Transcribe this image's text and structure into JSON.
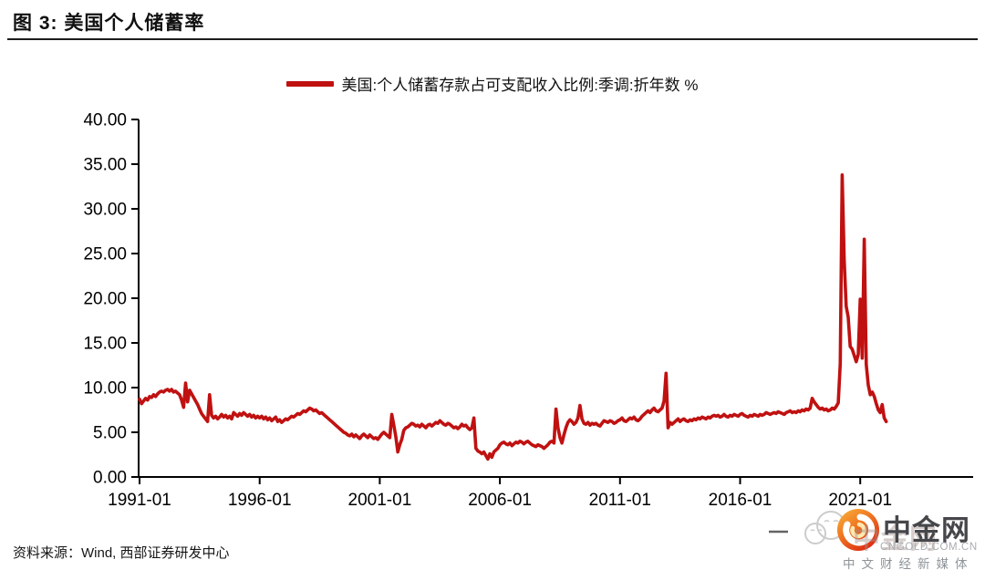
{
  "header": {
    "title": "图 3: 美国个人储蓄率"
  },
  "legend": {
    "label": "美国:个人储蓄存款占可支配收入比例:季调:折年数 %",
    "line_color": "#C01111"
  },
  "footer": {
    "source": "资料来源：Wind, 西部证券研发中心"
  },
  "watermark": {
    "brand": "中金网",
    "domain": "CNGOLD.COM.CN",
    "tagline": "中文财经新媒体",
    "logo_colors": {
      "top": "#F9B53F",
      "bottom": "#DD2B12"
    }
  },
  "chart_data": {
    "type": "line",
    "title": "美国个人储蓄率",
    "xlabel": "",
    "ylabel": "",
    "ylim": [
      0,
      40
    ],
    "grid": false,
    "legend_position": "top-center",
    "x_tick_labels": [
      "1991-01",
      "1996-01",
      "2001-01",
      "2006-01",
      "2011-01",
      "2016-01",
      "2021-01"
    ],
    "x_tick_interval_months": 60,
    "y_ticks": [
      0,
      5,
      10,
      15,
      20,
      25,
      30,
      35,
      40
    ],
    "y_tick_labels": [
      "0.00",
      "5.00",
      "10.00",
      "15.00",
      "20.00",
      "25.00",
      "30.00",
      "35.00",
      "40.00"
    ],
    "series": [
      {
        "name": "美国:个人储蓄存款占可支配收入比例:季调:折年数 %",
        "color": "#C01111",
        "start": "1991-01",
        "end": "2022-02",
        "frequency": "monthly",
        "values": [
          8.7,
          8.2,
          8.5,
          8.8,
          8.6,
          9.0,
          8.9,
          9.2,
          9.0,
          9.3,
          9.5,
          9.6,
          9.5,
          9.7,
          9.8,
          9.6,
          9.8,
          9.5,
          9.6,
          9.4,
          9.2,
          8.6,
          7.8,
          10.5,
          8.4,
          9.7,
          9.3,
          8.9,
          8.5,
          8.1,
          7.6,
          7.1,
          6.8,
          6.5,
          6.2,
          9.2,
          6.9,
          6.6,
          6.8,
          6.5,
          6.7,
          7.0,
          6.7,
          6.9,
          6.6,
          6.8,
          6.5,
          7.2,
          7.0,
          6.8,
          7.1,
          6.9,
          7.2,
          7.0,
          6.8,
          7.0,
          6.7,
          6.9,
          6.6,
          6.8,
          6.6,
          6.8,
          6.5,
          6.7,
          6.4,
          6.6,
          6.3,
          6.5,
          6.7,
          6.2,
          6.4,
          6.1,
          6.3,
          6.5,
          6.4,
          6.6,
          6.8,
          6.7,
          6.9,
          7.1,
          7.0,
          7.2,
          7.4,
          7.3,
          7.5,
          7.7,
          7.6,
          7.4,
          7.5,
          7.3,
          7.1,
          7.2,
          7.0,
          6.8,
          6.6,
          6.4,
          6.2,
          6.0,
          5.8,
          5.6,
          5.4,
          5.2,
          5.0,
          4.9,
          4.7,
          4.6,
          4.8,
          4.5,
          4.7,
          4.5,
          4.3,
          4.6,
          4.8,
          4.6,
          4.4,
          4.7,
          4.5,
          4.3,
          4.4,
          4.2,
          4.5,
          4.8,
          5.0,
          4.8,
          4.6,
          4.4,
          7.0,
          5.8,
          4.5,
          2.8,
          3.6,
          4.2,
          5.2,
          5.5,
          5.6,
          5.8,
          6.0,
          5.9,
          5.7,
          5.8,
          5.6,
          5.9,
          5.7,
          5.5,
          5.8,
          5.9,
          5.7,
          5.9,
          6.1,
          6.0,
          6.3,
          6.1,
          5.9,
          5.8,
          6.0,
          5.9,
          5.7,
          5.5,
          5.6,
          5.4,
          5.6,
          5.9,
          5.7,
          5.8,
          5.5,
          5.3,
          5.5,
          6.6,
          3.2,
          2.9,
          2.8,
          2.6,
          2.8,
          2.4,
          2.0,
          2.6,
          2.2,
          2.8,
          3.0,
          3.2,
          3.6,
          3.8,
          3.9,
          3.7,
          3.6,
          3.8,
          3.5,
          3.7,
          3.9,
          3.8,
          4.0,
          3.9,
          3.7,
          3.9,
          4.0,
          3.8,
          3.6,
          3.5,
          3.4,
          3.6,
          3.5,
          3.4,
          3.2,
          3.4,
          3.6,
          3.9,
          4.0,
          3.8,
          7.6,
          5.5,
          4.4,
          3.8,
          4.7,
          5.5,
          6.1,
          6.4,
          6.2,
          5.9,
          6.1,
          6.6,
          8.0,
          6.5,
          6.0,
          5.9,
          6.1,
          5.8,
          6.0,
          5.9,
          6.0,
          5.8,
          5.7,
          6.0,
          6.3,
          6.2,
          6.1,
          6.3,
          6.2,
          6.0,
          6.1,
          6.3,
          6.4,
          6.6,
          6.3,
          6.2,
          6.4,
          6.6,
          6.5,
          6.7,
          6.4,
          6.3,
          6.5,
          6.8,
          7.0,
          7.2,
          7.4,
          7.2,
          7.5,
          7.7,
          7.4,
          7.3,
          7.5,
          7.7,
          8.5,
          11.6,
          5.5,
          6.1,
          5.9,
          6.1,
          6.3,
          6.5,
          6.2,
          6.4,
          6.5,
          6.3,
          6.2,
          6.4,
          6.3,
          6.5,
          6.4,
          6.6,
          6.5,
          6.7,
          6.6,
          6.5,
          6.7,
          6.6,
          6.8,
          6.9,
          6.8,
          6.9,
          6.7,
          6.8,
          7.0,
          6.8,
          6.7,
          6.9,
          6.8,
          7.0,
          6.9,
          6.8,
          7.0,
          7.1,
          6.9,
          6.8,
          6.7,
          6.9,
          6.8,
          7.0,
          6.9,
          6.8,
          7.0,
          6.9,
          7.0,
          7.2,
          7.1,
          7.0,
          7.1,
          7.2,
          7.1,
          7.3,
          7.2,
          7.1,
          7.0,
          7.2,
          7.3,
          7.4,
          7.2,
          7.3,
          7.2,
          7.4,
          7.3,
          7.5,
          7.4,
          7.6,
          7.5,
          7.7,
          8.8,
          8.4,
          8.1,
          7.8,
          7.6,
          7.7,
          7.5,
          7.6,
          7.4,
          7.5,
          7.7,
          7.6,
          7.9,
          8.3,
          12.7,
          33.8,
          24.3,
          19.1,
          17.9,
          14.6,
          14.3,
          13.6,
          12.9,
          13.7,
          19.9,
          13.3,
          26.6,
          12.6,
          10.3,
          9.2,
          9.5,
          9.0,
          8.2,
          7.5,
          7.2,
          8.1,
          6.6,
          6.2
        ]
      }
    ]
  }
}
